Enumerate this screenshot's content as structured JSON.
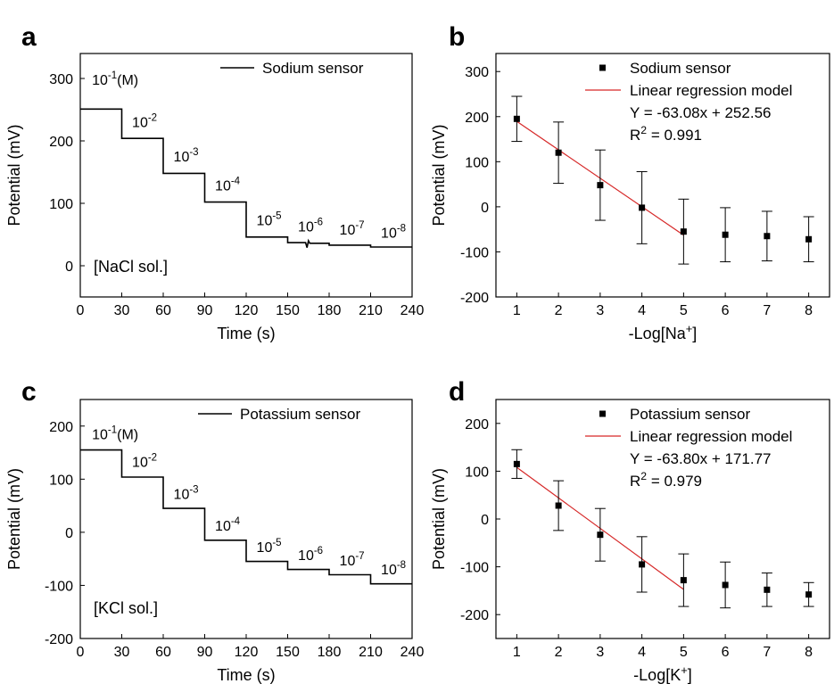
{
  "panels": {
    "a": {
      "letter": "a"
    },
    "b": {
      "letter": "b"
    },
    "c": {
      "letter": "c"
    },
    "d": {
      "letter": "d"
    }
  },
  "chart_data": [
    {
      "type": "line",
      "panel": "a",
      "xlabel": "Time (s)",
      "ylabel": "Potential (mV)",
      "xlim": [
        0,
        240
      ],
      "ylim": [
        -50,
        340
      ],
      "xticks": [
        0,
        30,
        60,
        90,
        120,
        150,
        180,
        210,
        240
      ],
      "yticks": [
        0,
        100,
        200,
        300
      ],
      "legend": "top-right",
      "series": [
        {
          "name": "Sodium sensor",
          "x": [
            0,
            30,
            30,
            60,
            60,
            90,
            90,
            120,
            120,
            150,
            150,
            163,
            164,
            165,
            166,
            180,
            180,
            210,
            210,
            240
          ],
          "y": [
            251,
            251,
            204,
            204,
            148,
            148,
            102,
            102,
            46,
            46,
            37,
            37,
            29,
            40,
            36,
            36,
            33,
            33,
            30,
            30
          ]
        }
      ],
      "annotations": [
        {
          "x": 2,
          "y": 290,
          "base": "10",
          "exp": "-1",
          "suffix": "(M)"
        },
        {
          "x": 31,
          "y": 222,
          "base": "10",
          "exp": "-2"
        },
        {
          "x": 61,
          "y": 167,
          "base": "10",
          "exp": "-3"
        },
        {
          "x": 91,
          "y": 121,
          "base": "10",
          "exp": "-4"
        },
        {
          "x": 121,
          "y": 65,
          "base": "10",
          "exp": "-5"
        },
        {
          "x": 151,
          "y": 55,
          "base": "10",
          "exp": "-6"
        },
        {
          "x": 181,
          "y": 50,
          "base": "10",
          "exp": "-7"
        },
        {
          "x": 211,
          "y": 45,
          "base": "10",
          "exp": "-8"
        }
      ],
      "note": "[NaCl sol.]"
    },
    {
      "type": "scatter",
      "panel": "b",
      "xlabel_prefix": "-Log[Na",
      "xlabel_sup": "+",
      "xlabel_suffix": "]",
      "ylabel": "Potential (mV)",
      "xlim": [
        0.5,
        8.5
      ],
      "ylim": [
        -200,
        340
      ],
      "xticks": [
        1,
        2,
        3,
        4,
        5,
        6,
        7,
        8
      ],
      "yticks": [
        -200,
        -100,
        0,
        100,
        200,
        300
      ],
      "legend": "top-right",
      "series": [
        {
          "name": "Sodium sensor",
          "x": [
            1,
            2,
            3,
            4,
            5,
            6,
            7,
            8
          ],
          "y": [
            195,
            120,
            48,
            -2,
            -55,
            -62,
            -65,
            -72
          ],
          "err": [
            50,
            68,
            78,
            80,
            72,
            60,
            55,
            50
          ]
        }
      ],
      "fit": {
        "name": "Linear regression model",
        "slope": -63.08,
        "intercept": 252.56,
        "x_range": [
          1,
          5
        ],
        "equation": "Y = -63.08x + 252.56",
        "r2_label": "R",
        "r2_sup": "2",
        "r2_value": " = 0.991"
      }
    },
    {
      "type": "line",
      "panel": "c",
      "xlabel": "Time (s)",
      "ylabel": "Potential (mV)",
      "xlim": [
        0,
        240
      ],
      "ylim": [
        -200,
        250
      ],
      "xticks": [
        0,
        30,
        60,
        90,
        120,
        150,
        180,
        210,
        240
      ],
      "yticks": [
        -200,
        -100,
        0,
        100,
        200
      ],
      "legend": "top-right",
      "series": [
        {
          "name": "Potassium sensor",
          "x": [
            0,
            30,
            30,
            60,
            60,
            90,
            90,
            120,
            120,
            150,
            150,
            180,
            180,
            210,
            210,
            240
          ],
          "y": [
            155,
            155,
            104,
            104,
            45,
            45,
            -15,
            -15,
            -55,
            -55,
            -70,
            -70,
            -80,
            -80,
            -97,
            -97
          ]
        }
      ],
      "annotations": [
        {
          "x": 2,
          "y": 175,
          "base": "10",
          "exp": "-1",
          "suffix": "(M)"
        },
        {
          "x": 31,
          "y": 123,
          "base": "10",
          "exp": "-2"
        },
        {
          "x": 61,
          "y": 63,
          "base": "10",
          "exp": "-3"
        },
        {
          "x": 91,
          "y": 3,
          "base": "10",
          "exp": "-4"
        },
        {
          "x": 121,
          "y": -37,
          "base": "10",
          "exp": "-5"
        },
        {
          "x": 151,
          "y": -52,
          "base": "10",
          "exp": "-6"
        },
        {
          "x": 181,
          "y": -62,
          "base": "10",
          "exp": "-7"
        },
        {
          "x": 211,
          "y": -79,
          "base": "10",
          "exp": "-8"
        }
      ],
      "note": "[KCl sol.]"
    },
    {
      "type": "scatter",
      "panel": "d",
      "xlabel_prefix": "-Log[K",
      "xlabel_sup": "+",
      "xlabel_suffix": "]",
      "ylabel": "Potential (mV)",
      "xlim": [
        0.5,
        8.5
      ],
      "ylim": [
        -250,
        250
      ],
      "xticks": [
        1,
        2,
        3,
        4,
        5,
        6,
        7,
        8
      ],
      "yticks": [
        -200,
        -100,
        0,
        100,
        200
      ],
      "legend": "top-right",
      "series": [
        {
          "name": "Potassium sensor",
          "x": [
            1,
            2,
            3,
            4,
            5,
            6,
            7,
            8
          ],
          "y": [
            115,
            28,
            -33,
            -95,
            -128,
            -138,
            -148,
            -158
          ],
          "err": [
            30,
            52,
            55,
            58,
            55,
            48,
            35,
            25
          ]
        }
      ],
      "fit": {
        "name": "Linear regression model",
        "slope": -63.8,
        "intercept": 171.77,
        "x_range": [
          1,
          5
        ],
        "equation": "Y = -63.80x + 171.77",
        "r2_label": "R",
        "r2_sup": "2",
        "r2_value": " = 0.979"
      }
    }
  ]
}
